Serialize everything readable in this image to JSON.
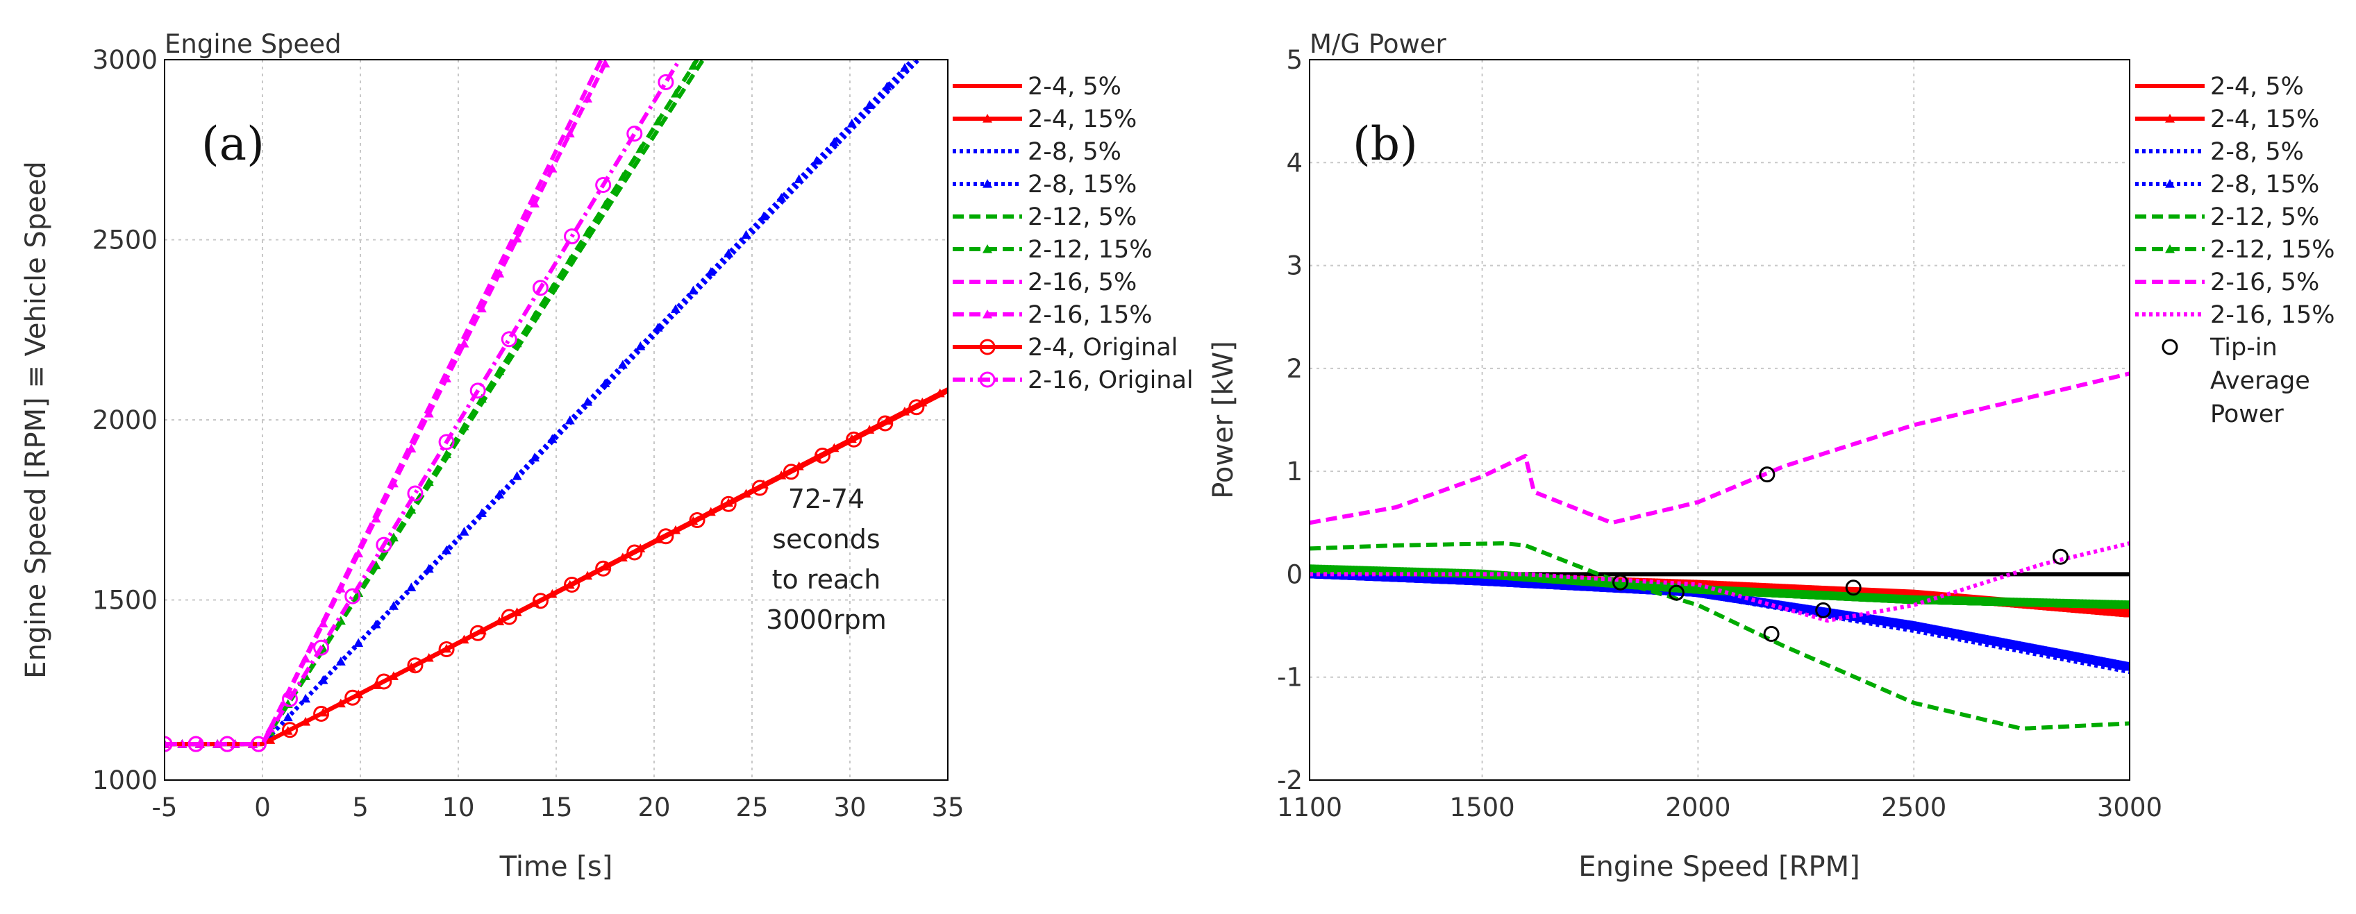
{
  "chart_data": [
    {
      "type": "line",
      "panel_label": "(a)",
      "title": "Engine Speed",
      "xlabel": "Time [s]",
      "ylabel": "Engine Speed [RPM] ≡ Vehicle Speed",
      "xlim": [
        -5,
        35
      ],
      "ylim": [
        1000,
        3000
      ],
      "xticks": [
        "-5",
        "0",
        "5",
        "10",
        "15",
        "20",
        "25",
        "30",
        "35"
      ],
      "yticks": [
        "1000",
        "1500",
        "2000",
        "2500",
        "3000"
      ],
      "grid": true,
      "legend_position": "right",
      "annotation": [
        "72-74",
        "seconds",
        "to reach",
        "3000rpm"
      ],
      "series": [
        {
          "name": "2-4, 5%",
          "color": "#ff0000",
          "style": "solid",
          "marker": "none",
          "x": [
            -5,
            0,
            35
          ],
          "y": [
            1100,
            1100,
            2080
          ]
        },
        {
          "name": "2-4, 15%",
          "color": "#ff0000",
          "style": "solid",
          "marker": "triangle",
          "x": [
            -5,
            0,
            35
          ],
          "y": [
            1100,
            1100,
            2085
          ]
        },
        {
          "name": "2-8, 5%",
          "color": "#0000ff",
          "style": "dotted",
          "marker": "none",
          "x": [
            -5,
            0,
            33.5
          ],
          "y": [
            1100,
            1100,
            3000
          ]
        },
        {
          "name": "2-8, 15%",
          "color": "#0000ff",
          "style": "dotted",
          "marker": "triangle",
          "x": [
            -5,
            0,
            33.2
          ],
          "y": [
            1100,
            1100,
            3000
          ]
        },
        {
          "name": "2-12, 5%",
          "color": "#00aa00",
          "style": "dashed",
          "marker": "none",
          "x": [
            -5,
            0,
            22.5
          ],
          "y": [
            1100,
            1100,
            3000
          ]
        },
        {
          "name": "2-12, 15%",
          "color": "#00aa00",
          "style": "dashed",
          "marker": "triangle",
          "x": [
            -5,
            0,
            22.2
          ],
          "y": [
            1100,
            1100,
            3000
          ]
        },
        {
          "name": "2-16, 5%",
          "color": "#ff00ff",
          "style": "dashed",
          "marker": "none",
          "x": [
            -5,
            0,
            17.3
          ],
          "y": [
            1100,
            1100,
            3000
          ]
        },
        {
          "name": "2-16, 15%",
          "color": "#ff00ff",
          "style": "dashed",
          "marker": "triangle",
          "x": [
            -5,
            0,
            17.6
          ],
          "y": [
            1100,
            1100,
            3000
          ]
        },
        {
          "name": "2-4, Original",
          "color": "#ff0000",
          "style": "solid",
          "marker": "circle",
          "x": [
            -5,
            0,
            35
          ],
          "y": [
            1100,
            1100,
            2080
          ]
        },
        {
          "name": "2-16, Original",
          "color": "#ff00ff",
          "style": "dashdot",
          "marker": "circle",
          "x": [
            -5,
            0,
            21.3
          ],
          "y": [
            1100,
            1100,
            3000
          ]
        }
      ]
    },
    {
      "type": "line",
      "panel_label": "(b)",
      "title": "M/G Power",
      "xlabel": "Engine Speed [RPM]",
      "ylabel": "Power [kW]",
      "xlim": [
        1100,
        3000
      ],
      "ylim": [
        -2,
        5
      ],
      "xticks": [
        "1100",
        "1500",
        "2000",
        "2500",
        "3000"
      ],
      "xtick_values": [
        1100,
        1500,
        2000,
        2500,
        3000
      ],
      "yticks": [
        "-2",
        "-1",
        "0",
        "1",
        "2",
        "3",
        "4",
        "5"
      ],
      "grid": true,
      "legend_position": "right",
      "reference_line": {
        "y": 0,
        "color": "#000000"
      },
      "series": [
        {
          "name": "2-4, 5%",
          "color": "#ff0000",
          "style": "solid",
          "marker": "none",
          "x": [
            1110,
            1500,
            2000,
            2500,
            3000
          ],
          "y": [
            0.0,
            -0.02,
            -0.08,
            -0.17,
            -0.35
          ]
        },
        {
          "name": "2-4, 15%",
          "color": "#ff0000",
          "style": "solid",
          "marker": "triangle",
          "x": [
            1110,
            1500,
            2000,
            2500,
            3000
          ],
          "y": [
            0.0,
            -0.03,
            -0.1,
            -0.2,
            -0.38
          ]
        },
        {
          "name": "2-8, 5%",
          "color": "#0000ff",
          "style": "dotted",
          "marker": "none",
          "x": [
            1100,
            1500,
            2000,
            2500,
            3000
          ],
          "y": [
            0.0,
            -0.08,
            -0.2,
            -0.55,
            -0.95
          ]
        },
        {
          "name": "2-8, 15%",
          "color": "#0000ff",
          "style": "dotted",
          "marker": "triangle",
          "x": [
            1100,
            1500,
            2000,
            2500,
            3000
          ],
          "y": [
            0.0,
            -0.07,
            -0.18,
            -0.5,
            -0.9
          ]
        },
        {
          "name": "2-12, 5%",
          "color": "#00aa00",
          "style": "dashed",
          "marker": "none",
          "x": [
            1100,
            1300,
            1550,
            1600,
            1800,
            2000,
            2200,
            2500,
            2750,
            3000
          ],
          "y": [
            0.25,
            0.28,
            0.3,
            0.28,
            -0.05,
            -0.3,
            -0.7,
            -1.25,
            -1.5,
            -1.45
          ]
        },
        {
          "name": "2-12, 15%",
          "color": "#00aa00",
          "style": "dashed",
          "marker": "triangle",
          "x": [
            1100,
            1500,
            2000,
            2500,
            3000
          ],
          "y": [
            0.05,
            0.0,
            -0.15,
            -0.25,
            -0.3
          ]
        },
        {
          "name": "2-16, 5%",
          "color": "#ff00ff",
          "style": "dashed",
          "marker": "none",
          "x": [
            1100,
            1300,
            1500,
            1600,
            1620,
            1800,
            2000,
            2200,
            2500,
            3000
          ],
          "y": [
            0.5,
            0.65,
            0.95,
            1.15,
            0.8,
            0.5,
            0.7,
            1.05,
            1.45,
            1.95
          ]
        },
        {
          "name": "2-16, 15%",
          "color": "#ff00ff",
          "style": "dotted",
          "marker": "none",
          "x": [
            1100,
            1600,
            2000,
            2300,
            2500,
            2800,
            3000
          ],
          "y": [
            0.0,
            0.0,
            -0.1,
            -0.45,
            -0.3,
            0.1,
            0.3
          ]
        },
        {
          "name": "Tip-in Average Power",
          "color": "#000000",
          "style": "none",
          "marker": "circle",
          "x": [
            1820,
            1950,
            2160,
            2170,
            2290,
            2360,
            2840
          ],
          "y": [
            -0.08,
            -0.18,
            0.97,
            -0.58,
            -0.35,
            -0.13,
            0.17
          ]
        }
      ]
    }
  ]
}
